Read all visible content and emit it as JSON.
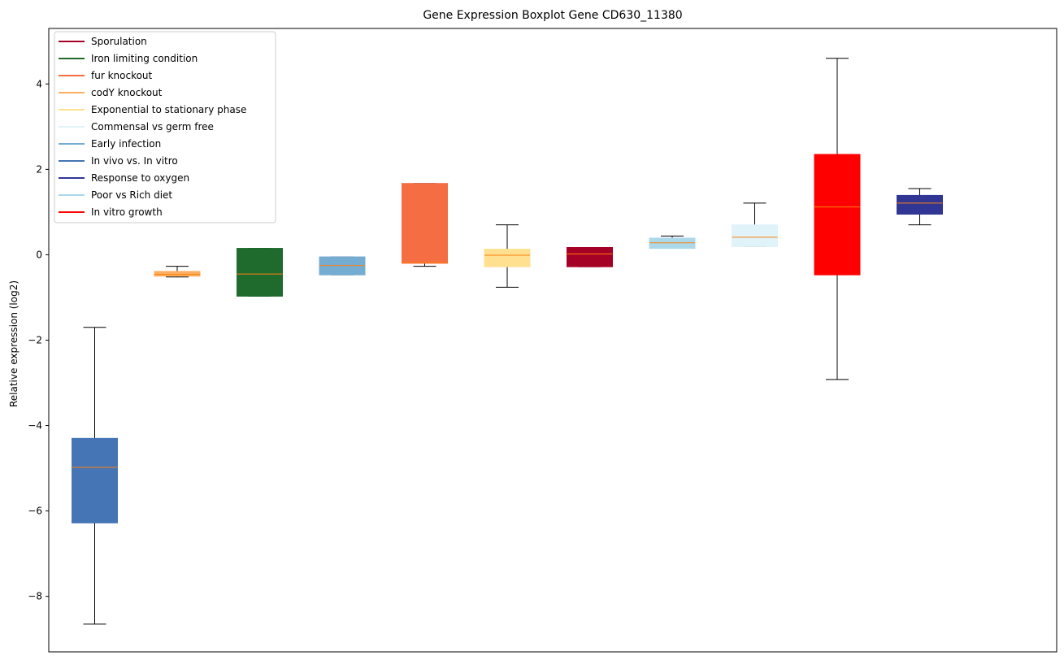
{
  "chart_data": {
    "type": "box",
    "title": "Gene Expression Boxplot Gene CD630_11380",
    "xlabel": "",
    "ylabel": "Relative expression (log2)",
    "ylim": [
      -9.3,
      5.3
    ],
    "yticks": [
      -8,
      -6,
      -4,
      -2,
      0,
      2,
      4
    ],
    "grid": false,
    "legend_position": "upper-left",
    "legend": [
      {
        "label": "Sporulation",
        "color": "#a50026"
      },
      {
        "label": "Iron limiting condition",
        "color": "#1f6b2e"
      },
      {
        "label": "fur knockout",
        "color": "#f46d43"
      },
      {
        "label": "codY knockout",
        "color": "#fdae61"
      },
      {
        "label": "Exponential to stationary phase",
        "color": "#fee090"
      },
      {
        "label": "Commensal vs germ free",
        "color": "#e0f3f8"
      },
      {
        "label": "Early infection",
        "color": "#74add1"
      },
      {
        "label": "In vivo vs. In vitro",
        "color": "#4575b4"
      },
      {
        "label": "Response to oxygen",
        "color": "#313695"
      },
      {
        "label": "Poor vs Rich diet",
        "color": "#abd9e9"
      },
      {
        "label": "In vitro growth",
        "color": "#ff0000"
      }
    ],
    "boxes": [
      {
        "condition": "In vivo vs. In vitro",
        "color": "#4575b4",
        "whisker_low": -8.65,
        "q1": -6.28,
        "median": -4.98,
        "q3": -4.3,
        "whisker_high": -1.7
      },
      {
        "condition": "codY knockout",
        "color": "#fdae61",
        "whisker_low": -0.52,
        "q1": -0.5,
        "median": -0.46,
        "q3": -0.39,
        "whisker_high": -0.27
      },
      {
        "condition": "Iron limiting condition",
        "color": "#1f6b2e",
        "whisker_low": -0.97,
        "q1": -0.97,
        "median": -0.45,
        "q3": 0.15,
        "whisker_high": 0.15
      },
      {
        "condition": "Early infection",
        "color": "#74add1",
        "whisker_low": -0.47,
        "q1": -0.47,
        "median": -0.25,
        "q3": -0.05,
        "whisker_high": -0.05
      },
      {
        "condition": "fur knockout",
        "color": "#f46d43",
        "whisker_low": -0.27,
        "q1": -0.2,
        "median": -0.18,
        "q3": 1.67,
        "whisker_high": 1.67
      },
      {
        "condition": "Exponential to stationary phase",
        "color": "#fee090",
        "whisker_low": -0.76,
        "q1": -0.28,
        "median": -0.01,
        "q3": 0.13,
        "whisker_high": 0.7
      },
      {
        "condition": "Sporulation",
        "color": "#a50026",
        "whisker_low": -0.28,
        "q1": -0.28,
        "median": 0.02,
        "q3": 0.17,
        "whisker_high": 0.17
      },
      {
        "condition": "Poor vs Rich diet",
        "color": "#abd9e9",
        "whisker_low": 0.15,
        "q1": 0.15,
        "median": 0.28,
        "q3": 0.39,
        "whisker_high": 0.44
      },
      {
        "condition": "Commensal vs germ free",
        "color": "#e0f3f8",
        "whisker_low": 0.19,
        "q1": 0.19,
        "median": 0.41,
        "q3": 0.7,
        "whisker_high": 1.21
      },
      {
        "condition": "In vitro growth",
        "color": "#ff0000",
        "whisker_low": -2.92,
        "q1": -0.47,
        "median": 1.12,
        "q3": 2.35,
        "whisker_high": 4.6
      },
      {
        "condition": "Response to oxygen",
        "color": "#313695",
        "whisker_low": 0.7,
        "q1": 0.95,
        "median": 1.21,
        "q3": 1.39,
        "whisker_high": 1.55
      }
    ],
    "median_color": "#ff7f0e"
  }
}
